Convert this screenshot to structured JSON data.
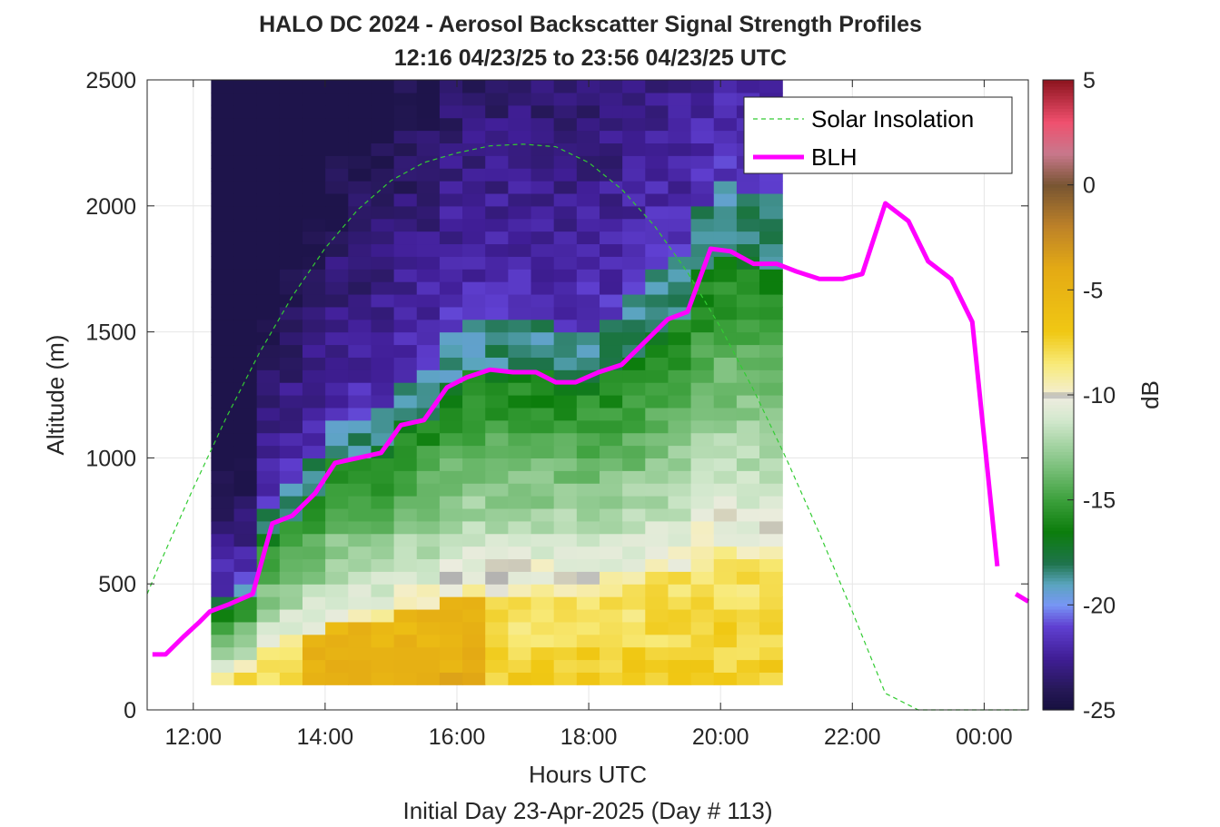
{
  "chart_data": {
    "type": "heatmap",
    "title": "HALO DC 2024 - Aerosol Backscatter Signal Strength Profiles",
    "subtitle": "12:16 04/23/25 to 23:56 04/23/25  UTC",
    "xlabel": "Hours UTC",
    "xlabel2": "Initial Day 23-Apr-2025 (Day # 113)",
    "ylabel": "Altitude (m)",
    "colorbar_label": "dB",
    "xlim": [
      11.3,
      24.67
    ],
    "ylim": [
      0,
      2500
    ],
    "x_ticks": [
      12,
      14,
      16,
      18,
      20,
      22,
      24
    ],
    "x_tick_labels": [
      "12:00",
      "14:00",
      "16:00",
      "18:00",
      "20:00",
      "22:00",
      "00:00"
    ],
    "y_ticks": [
      0,
      500,
      1000,
      1500,
      2000,
      2500
    ],
    "y_tick_labels": [
      "0",
      "500",
      "1000",
      "1500",
      "2000",
      "2500"
    ],
    "clim": [
      -25,
      5
    ],
    "colorbar_ticks": [
      5,
      0,
      -5,
      -10,
      -15,
      -20,
      -25
    ],
    "colorbar_tick_labels": [
      "5",
      "0",
      "-5",
      "-10",
      "-15",
      "-20",
      "-25"
    ],
    "grid": true,
    "legend_position": "top-right",
    "heatmap": {
      "x_start": 12.27,
      "x_step": 0.3467,
      "y_start": 100,
      "y_step": 50,
      "z_db": "approximate per-column profiles of backscatter signal strength (dB), generated per time column"
    },
    "series": [
      {
        "name": "Solar Insolation",
        "style": "dashed",
        "color": "#33cc33",
        "x": [
          11.3,
          11.5,
          12,
          12.5,
          13,
          13.5,
          14,
          14.5,
          15,
          15.5,
          16,
          16.5,
          17,
          17.5,
          18,
          18.5,
          19,
          19.5,
          20,
          20.5,
          21,
          21.5,
          22,
          22.5,
          23,
          23.5,
          23.92,
          24.2,
          24.67
        ],
        "y": [
          460,
          585,
          880,
          1160,
          1415,
          1640,
          1832,
          1986,
          2100,
          2172,
          2210,
          2238,
          2245,
          2235,
          2172,
          2066,
          1920,
          1736,
          1518,
          1270,
          996,
          701,
          390,
          66,
          0,
          0,
          0,
          0,
          0
        ]
      },
      {
        "name": "BLH",
        "style": "solid",
        "color": "#ff00ff",
        "segments": [
          {
            "x": [
              11.38,
              11.58,
              11.85,
              12.1,
              12.25,
              12.55,
              12.9,
              13.2,
              13.5,
              13.85,
              14.15,
              14.5,
              14.85,
              15.15,
              15.5,
              15.85,
              16.15,
              16.5,
              16.85,
              17.2,
              17.5,
              17.8,
              18.15,
              18.5,
              18.85,
              19.2,
              19.5,
              19.85,
              20.15,
              20.5,
              20.85,
              21.15,
              21.5,
              21.85,
              22.15,
              22.5,
              22.85,
              23.15,
              23.5,
              23.82,
              24.2
            ],
            "y": [
              220,
              220,
              290,
              350,
              390,
              420,
              460,
              740,
              770,
              860,
              980,
              1000,
              1020,
              1130,
              1150,
              1280,
              1320,
              1350,
              1340,
              1340,
              1300,
              1300,
              1340,
              1370,
              1460,
              1550,
              1580,
              1830,
              1820,
              1770,
              1770,
              1740,
              1710,
              1710,
              1730,
              2010,
              1940,
              1780,
              1710,
              1540,
              570
            ]
          },
          {
            "x": [
              24.48,
              24.67
            ],
            "y": [
              460,
              430
            ]
          }
        ]
      }
    ],
    "legend": [
      {
        "label": "Solar Insolation",
        "color": "#33cc33",
        "style": "dashed"
      },
      {
        "label": "BLH",
        "color": "#ff00ff",
        "style": "solid"
      }
    ]
  }
}
